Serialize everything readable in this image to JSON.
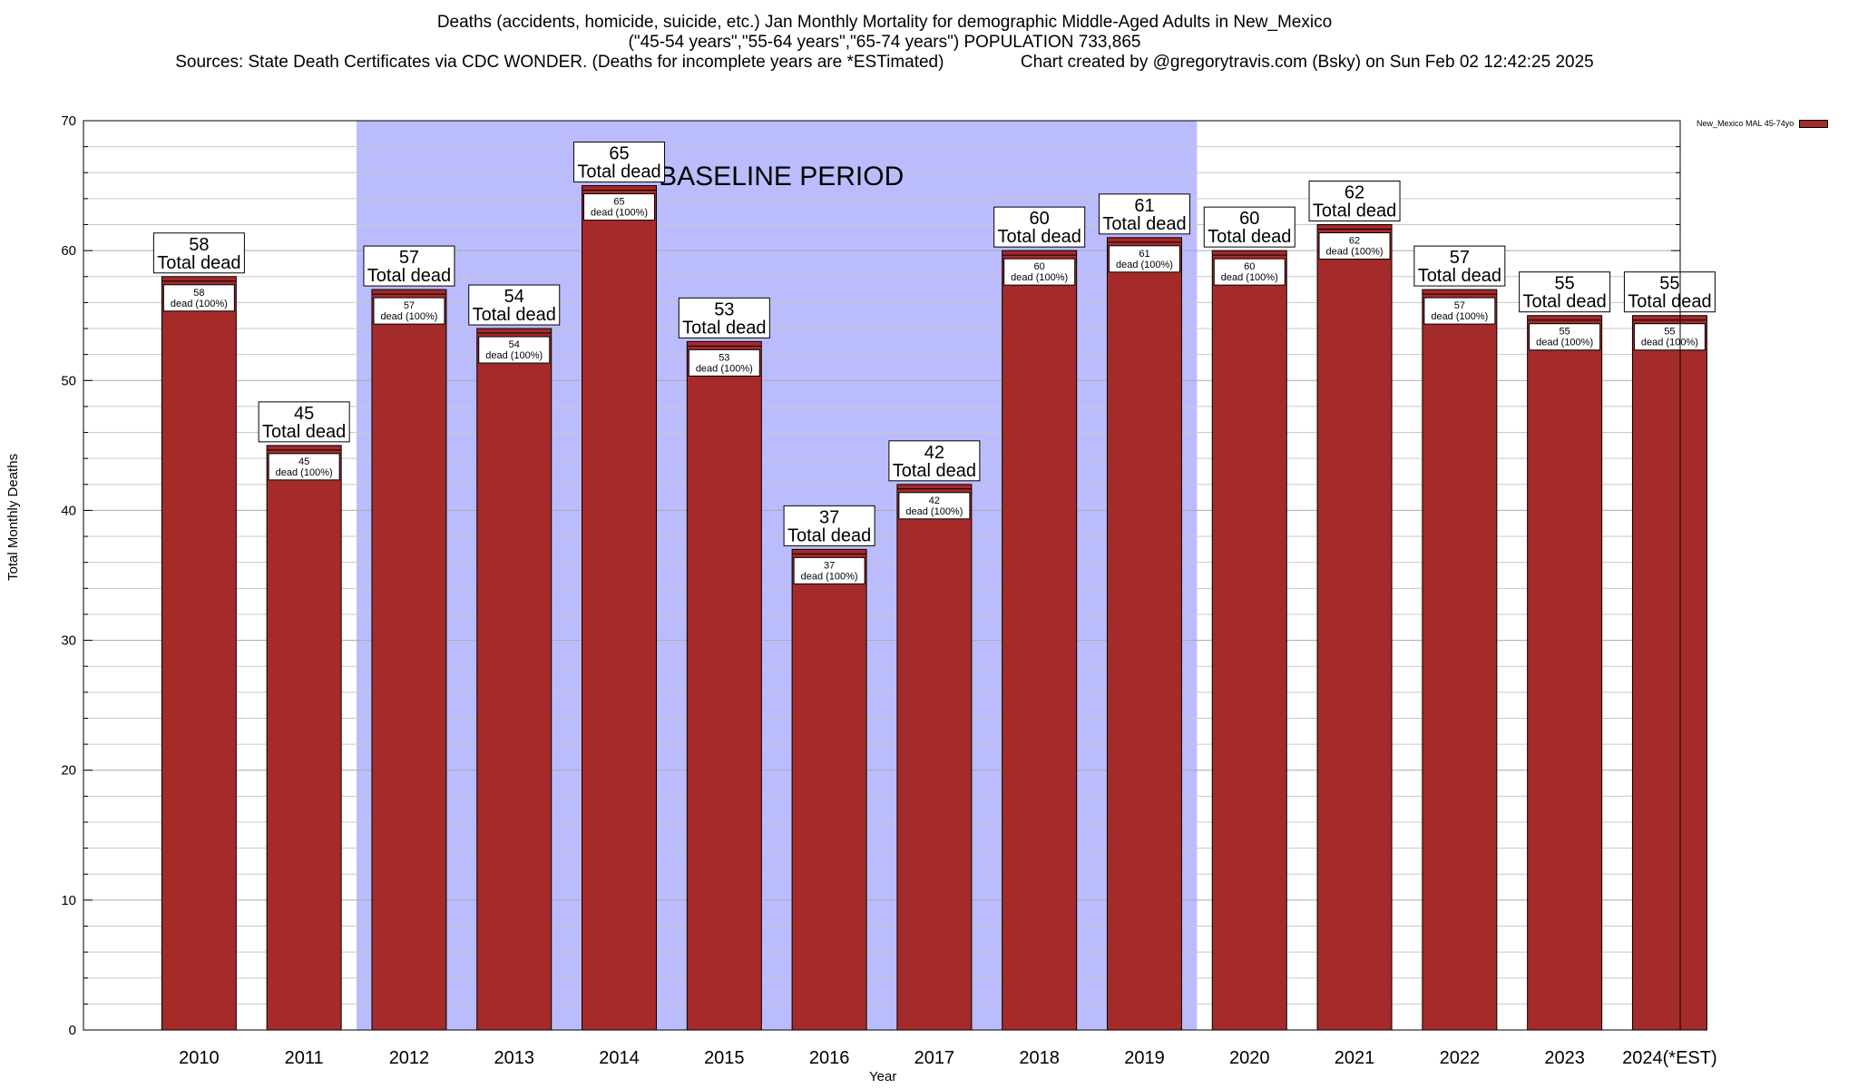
{
  "header": {
    "title_line1": "Deaths (accidents, homicide, suicide, etc.) Jan Monthly Mortality for demographic Middle-Aged Adults in New_Mexico",
    "title_line2": "(\"45-54 years\",\"55-64 years\",\"65-74 years\") POPULATION 733,865",
    "title_line3": "Sources: State Death Certificates via CDC WONDER. (Deaths for incomplete years are *ESTimated)                Chart created by @gregorytravis.com (Bsky) on Sun Feb 02 12:42:25 2025"
  },
  "legend": {
    "label": "New_Mexico MAL 45-74yo"
  },
  "colors": {
    "bar": "#a52a2a",
    "baseline_band": "#bbbcfd",
    "grid": "#c8c8c8"
  },
  "chart_data": {
    "type": "bar",
    "xlabel": "Year",
    "ylabel": "Total Monthly Deaths",
    "ylim": [
      0,
      70
    ],
    "yticks": [
      0,
      10,
      20,
      30,
      40,
      50,
      60,
      70
    ],
    "grid": true,
    "legend_position": "top-right",
    "categories": [
      "2010",
      "2011",
      "2012",
      "2013",
      "2014",
      "2015",
      "2016",
      "2017",
      "2018",
      "2019",
      "2020",
      "2021",
      "2022",
      "2023",
      "2024(*EST)"
    ],
    "series": [
      {
        "name": "New_Mexico MAL 45-74yo",
        "values": [
          58,
          45,
          57,
          54,
          65,
          53,
          37,
          42,
          60,
          61,
          60,
          62,
          57,
          55,
          55
        ]
      }
    ],
    "top_label_suffix": "Total dead",
    "inner_label_suffix": "dead (100%)",
    "annotations": [
      {
        "text": "BASELINE PERIOD",
        "from_category": "2012",
        "to_category": "2019"
      }
    ]
  }
}
